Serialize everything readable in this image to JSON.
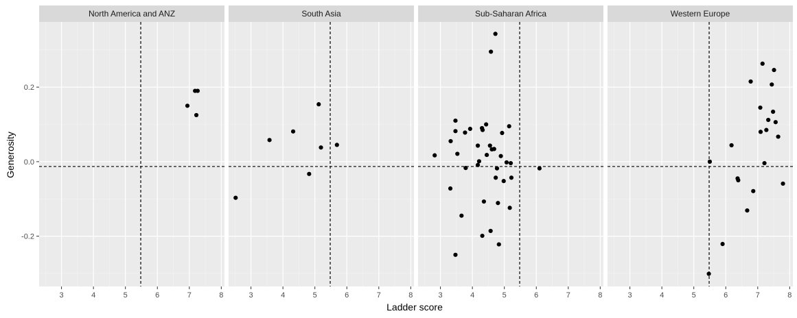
{
  "chart_data": {
    "type": "scatter",
    "xlabel": "Ladder score",
    "ylabel": "Generosity",
    "xlim": [
      2.3,
      8.1
    ],
    "ylim": [
      -0.335,
      0.375
    ],
    "x_ticks": [
      3,
      4,
      5,
      6,
      7,
      8
    ],
    "y_ticks": [
      -0.2,
      0.0,
      0.2
    ],
    "y_tick_labels": [
      "-0.2",
      "0.0",
      "0.2"
    ],
    "grid": true,
    "reference_lines": {
      "vertical_x": 5.48,
      "horizontal_y": -0.013
    },
    "colors": {
      "panel_bg": "#ebebeb",
      "grid_major": "#ffffff",
      "strip_bg": "#d9d9d9",
      "point": "#000000",
      "ref_line": "#000000"
    },
    "facets": [
      {
        "name": "North America and ANZ",
        "points": [
          [
            6.94,
            0.15
          ],
          [
            7.18,
            0.19
          ],
          [
            7.26,
            0.19
          ],
          [
            7.22,
            0.125
          ]
        ]
      },
      {
        "name": "South Asia",
        "points": [
          [
            2.52,
            -0.097
          ],
          [
            3.58,
            0.058
          ],
          [
            4.32,
            0.081
          ],
          [
            4.82,
            -0.033
          ],
          [
            5.12,
            0.154
          ],
          [
            5.19,
            0.038
          ],
          [
            5.69,
            0.045
          ]
        ]
      },
      {
        "name": "Sub-Saharan Africa",
        "points": [
          [
            2.82,
            0.017
          ],
          [
            3.32,
            0.055
          ],
          [
            3.31,
            -0.072
          ],
          [
            3.47,
            0.11
          ],
          [
            3.47,
            0.082
          ],
          [
            3.53,
            0.021
          ],
          [
            3.66,
            -0.145
          ],
          [
            3.77,
            0.078
          ],
          [
            3.79,
            -0.017
          ],
          [
            3.93,
            0.088
          ],
          [
            4.17,
            0.043
          ],
          [
            4.17,
            -0.009
          ],
          [
            4.21,
            0.001
          ],
          [
            4.3,
            0.09
          ],
          [
            4.32,
            0.085
          ],
          [
            4.36,
            -0.107
          ],
          [
            4.43,
            0.1
          ],
          [
            4.45,
            0.018
          ],
          [
            4.55,
            0.043
          ],
          [
            4.58,
            0.295
          ],
          [
            4.61,
            0.033
          ],
          [
            4.68,
            0.034
          ],
          [
            4.72,
            0.343
          ],
          [
            4.73,
            -0.043
          ],
          [
            4.77,
            -0.018
          ],
          [
            4.8,
            -0.111
          ],
          [
            4.83,
            -0.222
          ],
          [
            4.89,
            0.015
          ],
          [
            4.93,
            0.077
          ],
          [
            4.98,
            -0.052
          ],
          [
            5.07,
            -0.002
          ],
          [
            5.15,
            0.095
          ],
          [
            5.17,
            -0.124
          ],
          [
            5.2,
            -0.004
          ],
          [
            5.22,
            -0.043
          ],
          [
            6.1,
            -0.018
          ],
          [
            4.57,
            -0.186
          ],
          [
            4.31,
            -0.199
          ],
          [
            3.47,
            -0.25
          ]
        ]
      },
      {
        "name": "Western Europe",
        "points": [
          [
            5.47,
            -0.301
          ],
          [
            5.5,
            0.0
          ],
          [
            5.9,
            -0.221
          ],
          [
            6.18,
            0.044
          ],
          [
            6.37,
            -0.045
          ],
          [
            6.39,
            -0.05
          ],
          [
            6.67,
            -0.131
          ],
          [
            6.78,
            0.215
          ],
          [
            6.86,
            -0.079
          ],
          [
            7.08,
            0.145
          ],
          [
            7.09,
            0.08
          ],
          [
            7.15,
            0.263
          ],
          [
            7.21,
            -0.004
          ],
          [
            7.27,
            0.085
          ],
          [
            7.33,
            0.112
          ],
          [
            7.44,
            0.207
          ],
          [
            7.48,
            0.134
          ],
          [
            7.51,
            0.246
          ],
          [
            7.56,
            0.106
          ],
          [
            7.64,
            0.067
          ],
          [
            7.79,
            -0.059
          ]
        ]
      }
    ]
  }
}
